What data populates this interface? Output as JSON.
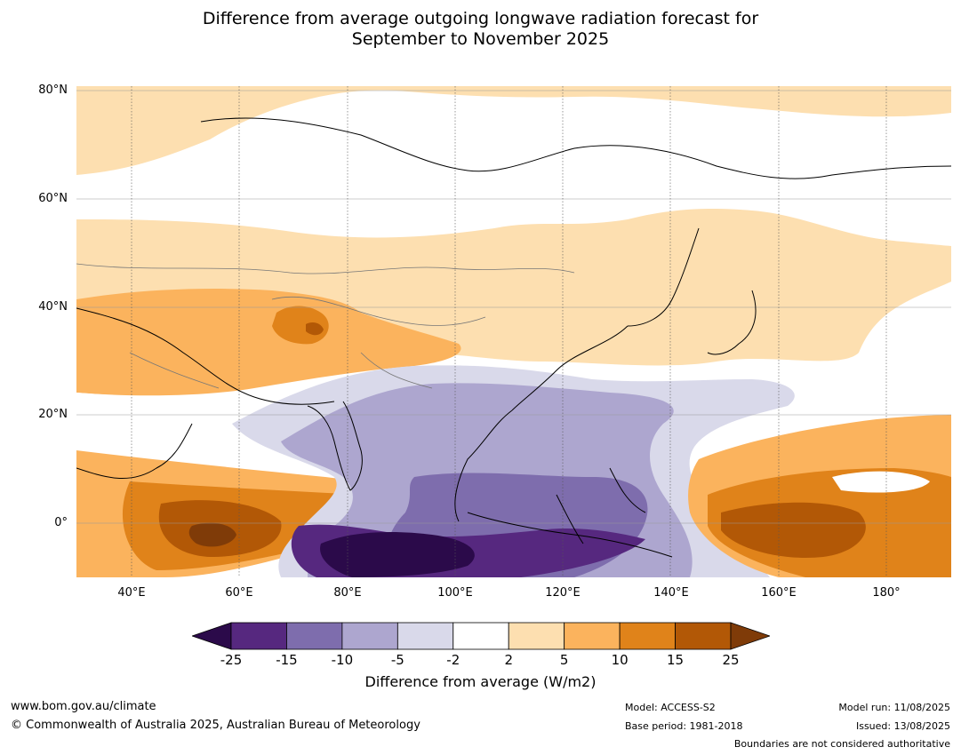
{
  "title_line1": "Difference from average outgoing longwave radiation forecast for",
  "title_line2": "September to November 2025",
  "map": {
    "lat_labels": [
      "80°N",
      "60°N",
      "40°N",
      "20°N",
      "0°"
    ],
    "lat_values": [
      80,
      60,
      40,
      20,
      0
    ],
    "lon_labels": [
      "40°E",
      "60°E",
      "80°E",
      "100°E",
      "120°E",
      "140°E",
      "160°E",
      "180°"
    ],
    "lon_values": [
      40,
      60,
      80,
      100,
      120,
      140,
      160,
      180
    ],
    "lon_range": [
      30,
      192
    ],
    "lat_range": [
      -10,
      81
    ]
  },
  "colorbar": {
    "ticks": [
      "-25",
      "-15",
      "-10",
      "-5",
      "-2",
      "2",
      "5",
      "10",
      "15",
      "25"
    ],
    "colors": [
      "#2b0a4a",
      "#56287f",
      "#7e6dad",
      "#ada6cf",
      "#d9d9ea",
      "#ffffff",
      "#fddfb0",
      "#fbb35d",
      "#e0831a",
      "#b25806",
      "#7f3b08"
    ],
    "label": "Difference from average (W/m2)"
  },
  "footer": {
    "website": "www.bom.gov.au/climate",
    "copyright": "© Commonwealth of Australia 2025, Australian Bureau of Meteorology",
    "model": "Model: ACCESS-S2",
    "base_period": "Base period: 1981-2018",
    "model_run": "Model run: 11/08/2025",
    "issued": "Issued: 13/08/2025",
    "boundaries": "Boundaries are not considered authoritative"
  }
}
